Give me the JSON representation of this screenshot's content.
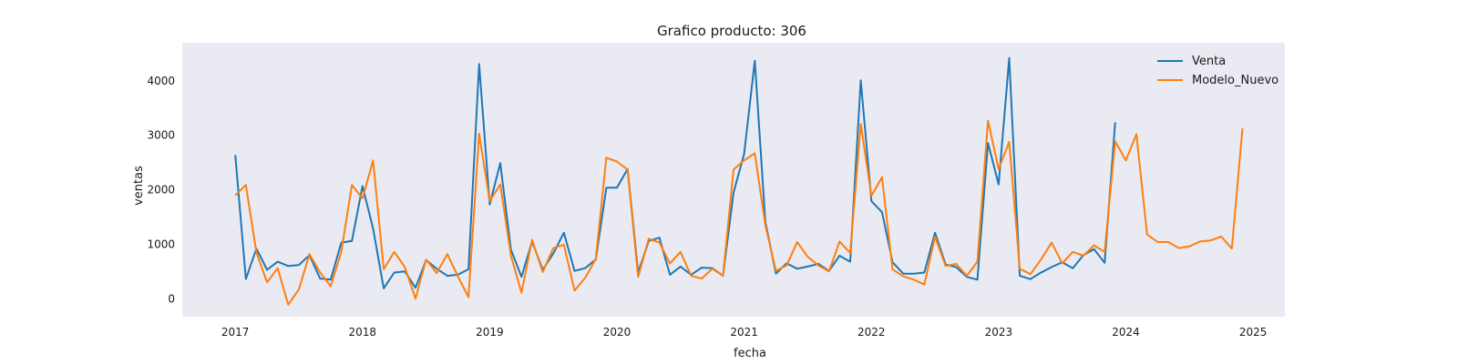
{
  "chart_data": {
    "type": "line",
    "title": "Grafico producto: 306",
    "xlabel": "fecha",
    "ylabel": "ventas",
    "x_ticks": [
      "2017",
      "2018",
      "2019",
      "2020",
      "2021",
      "2022",
      "2023",
      "2024",
      "2025"
    ],
    "y_ticks": [
      "0",
      "1000",
      "2000",
      "3000",
      "4000"
    ],
    "xlim": [
      "2016-08",
      "2025-04"
    ],
    "ylim": [
      -330,
      4700
    ],
    "grid": false,
    "legend_position": "top-right",
    "colors": {
      "plot_bg": "#eaeaf2",
      "venta": "#1f77b4",
      "modelo": "#ff7f0e"
    },
    "series": [
      {
        "name": "Venta",
        "start": "2017-01",
        "values": [
          2640,
          360,
          920,
          530,
          680,
          600,
          620,
          800,
          370,
          350,
          1030,
          1060,
          2070,
          1290,
          190,
          480,
          500,
          200,
          710,
          550,
          420,
          440,
          540,
          4310,
          1730,
          2490,
          900,
          400,
          1050,
          530,
          830,
          1210,
          510,
          560,
          720,
          2040,
          2040,
          2380,
          480,
          1060,
          1120,
          440,
          590,
          440,
          570,
          560,
          420,
          1950,
          2660,
          4370,
          1410,
          460,
          650,
          550,
          590,
          640,
          510,
          790,
          680,
          4010,
          1790,
          1590,
          670,
          460,
          460,
          480,
          1210,
          630,
          580,
          400,
          350,
          2860,
          2100,
          4420,
          420,
          360,
          480,
          580,
          670,
          560,
          800,
          910,
          660,
          3240
        ]
      },
      {
        "name": "Modelo_Nuevo",
        "start": "2017-01",
        "values": [
          1900,
          2090,
          850,
          300,
          560,
          -110,
          170,
          820,
          480,
          230,
          860,
          2090,
          1840,
          2540,
          540,
          860,
          580,
          0,
          720,
          470,
          820,
          410,
          30,
          3030,
          1790,
          2100,
          790,
          110,
          1080,
          490,
          930,
          990,
          150,
          380,
          730,
          2590,
          2520,
          2370,
          400,
          1100,
          1030,
          650,
          860,
          420,
          370,
          550,
          420,
          2370,
          2540,
          2670,
          1350,
          510,
          610,
          1040,
          770,
          610,
          500,
          1050,
          840,
          3210,
          1890,
          2230,
          540,
          410,
          350,
          260,
          1140,
          600,
          640,
          420,
          680,
          3270,
          2380,
          2880,
          550,
          450,
          720,
          1030,
          650,
          860,
          790,
          980,
          860,
          2890,
          2540,
          3020,
          1180,
          1040,
          1040,
          930,
          960,
          1050,
          1070,
          1140,
          920,
          3130
        ]
      }
    ]
  }
}
